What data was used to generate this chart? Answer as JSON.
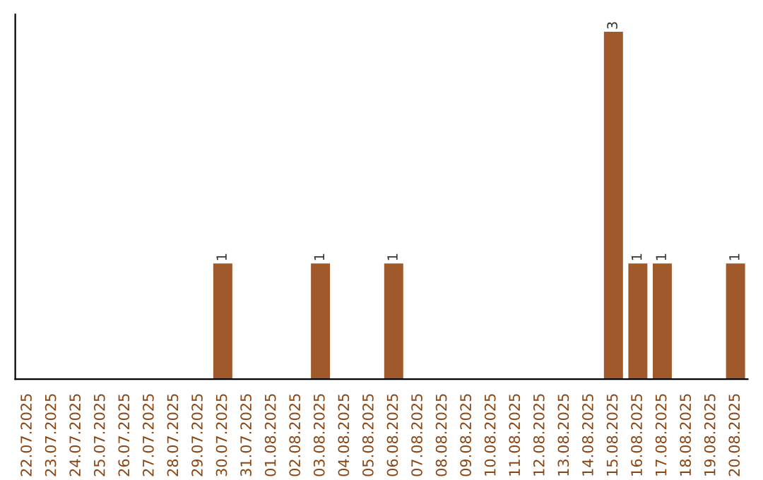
{
  "chart_data": {
    "type": "bar",
    "categories": [
      "22.07.2025",
      "23.07.2025",
      "24.07.2025",
      "25.07.2025",
      "26.07.2025",
      "27.07.2025",
      "28.07.2025",
      "29.07.2025",
      "30.07.2025",
      "31.07.2025",
      "01.08.2025",
      "02.08.2025",
      "03.08.2025",
      "04.08.2025",
      "05.08.2025",
      "06.08.2025",
      "07.08.2025",
      "08.08.2025",
      "09.08.2025",
      "10.08.2025",
      "11.08.2025",
      "12.08.2025",
      "13.08.2025",
      "14.08.2025",
      "15.08.2025",
      "16.08.2025",
      "17.08.2025",
      "18.08.2025",
      "19.08.2025",
      "20.08.2025"
    ],
    "values": [
      0,
      0,
      0,
      0,
      0,
      0,
      0,
      0,
      1,
      0,
      0,
      0,
      1,
      0,
      0,
      1,
      0,
      0,
      0,
      0,
      0,
      0,
      0,
      0,
      3,
      1,
      1,
      0,
      0,
      1
    ],
    "value_labels": [
      null,
      null,
      null,
      null,
      null,
      null,
      null,
      null,
      "1",
      null,
      null,
      null,
      "1",
      null,
      null,
      "1",
      null,
      null,
      null,
      null,
      null,
      null,
      null,
      null,
      "3",
      "1",
      "1",
      null,
      null,
      "1"
    ],
    "color": "#a0592b",
    "grid": false,
    "legend": false,
    "tick_labels": "x"
  }
}
